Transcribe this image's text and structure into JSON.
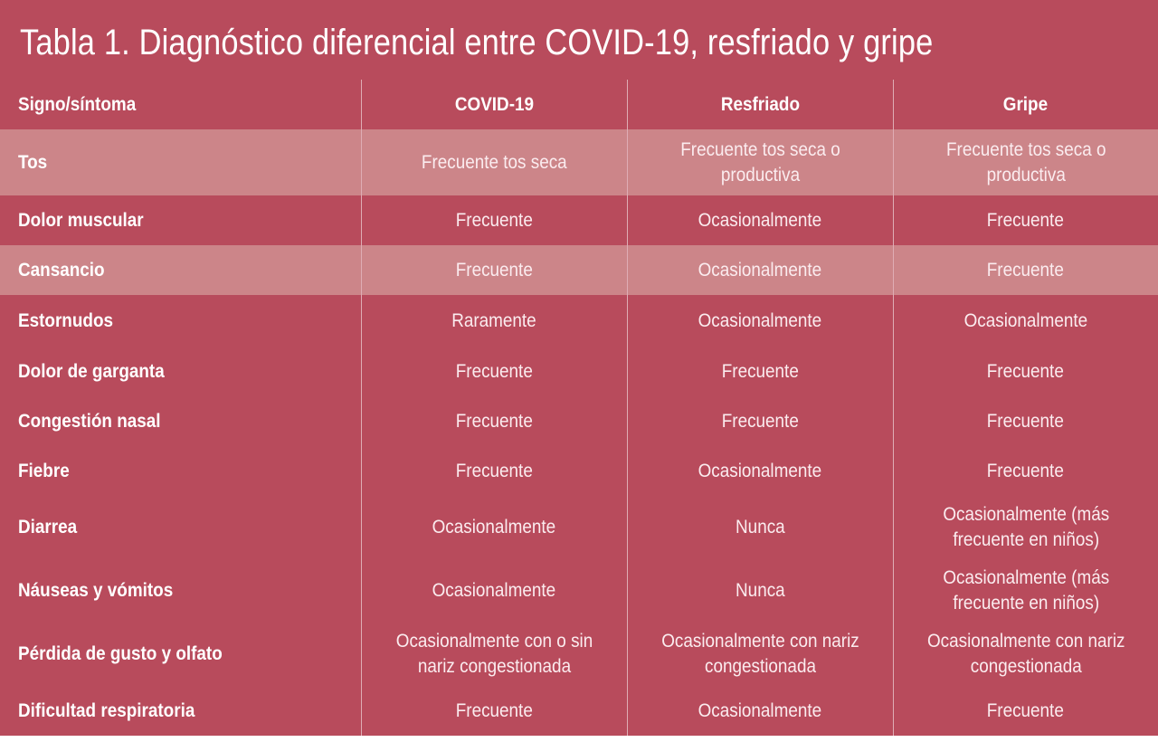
{
  "title": "Tabla 1. Diagnóstico diferencial entre COVID-19, resfriado y gripe",
  "colors": {
    "background": "#b84b5c",
    "shaded_row": "#cc8589",
    "text": "#ffffff"
  },
  "table": {
    "headers": [
      "Signo/síntoma",
      "COVID-19",
      "Resfriado",
      "Gripe"
    ],
    "rows": [
      {
        "cells": [
          "Tos",
          "Frecuente tos seca",
          "Frecuente tos seca o productiva",
          "Frecuente tos seca o productiva"
        ],
        "shaded": true
      },
      {
        "cells": [
          "Dolor muscular",
          "Frecuente",
          "Ocasionalmente",
          "Frecuente"
        ],
        "shaded": false
      },
      {
        "cells": [
          "Cansancio",
          "Frecuente",
          "Ocasionalmente",
          "Frecuente"
        ],
        "shaded": true
      },
      {
        "cells": [
          "Estornudos",
          "Raramente",
          "Ocasionalmente",
          "Ocasionalmente"
        ],
        "shaded": false
      },
      {
        "cells": [
          "Dolor de garganta",
          "Frecuente",
          "Frecuente",
          "Frecuente"
        ],
        "shaded": false
      },
      {
        "cells": [
          "Congestión nasal",
          "Frecuente",
          "Frecuente",
          "Frecuente"
        ],
        "shaded": false
      },
      {
        "cells": [
          "Fiebre",
          "Frecuente",
          "Ocasionalmente",
          "Frecuente"
        ],
        "shaded": false
      },
      {
        "cells": [
          "Diarrea",
          "Ocasionalmente",
          "Nunca",
          "Ocasionalmente (más frecuente en niños)"
        ],
        "shaded": false
      },
      {
        "cells": [
          "Náuseas y vómitos",
          "Ocasionalmente",
          "Nunca",
          "Ocasionalmente (más frecuente en niños)"
        ],
        "shaded": false
      },
      {
        "cells": [
          "Pérdida de gusto y olfato",
          "Ocasionalmente con o sin nariz congestionada",
          "Ocasionalmente con nariz congestionada",
          "Ocasionalmente con nariz congestionada"
        ],
        "shaded": false
      },
      {
        "cells": [
          "Dificultad respiratoria",
          "Frecuente",
          "Ocasionalmente",
          "Frecuente"
        ],
        "shaded": false
      }
    ]
  }
}
